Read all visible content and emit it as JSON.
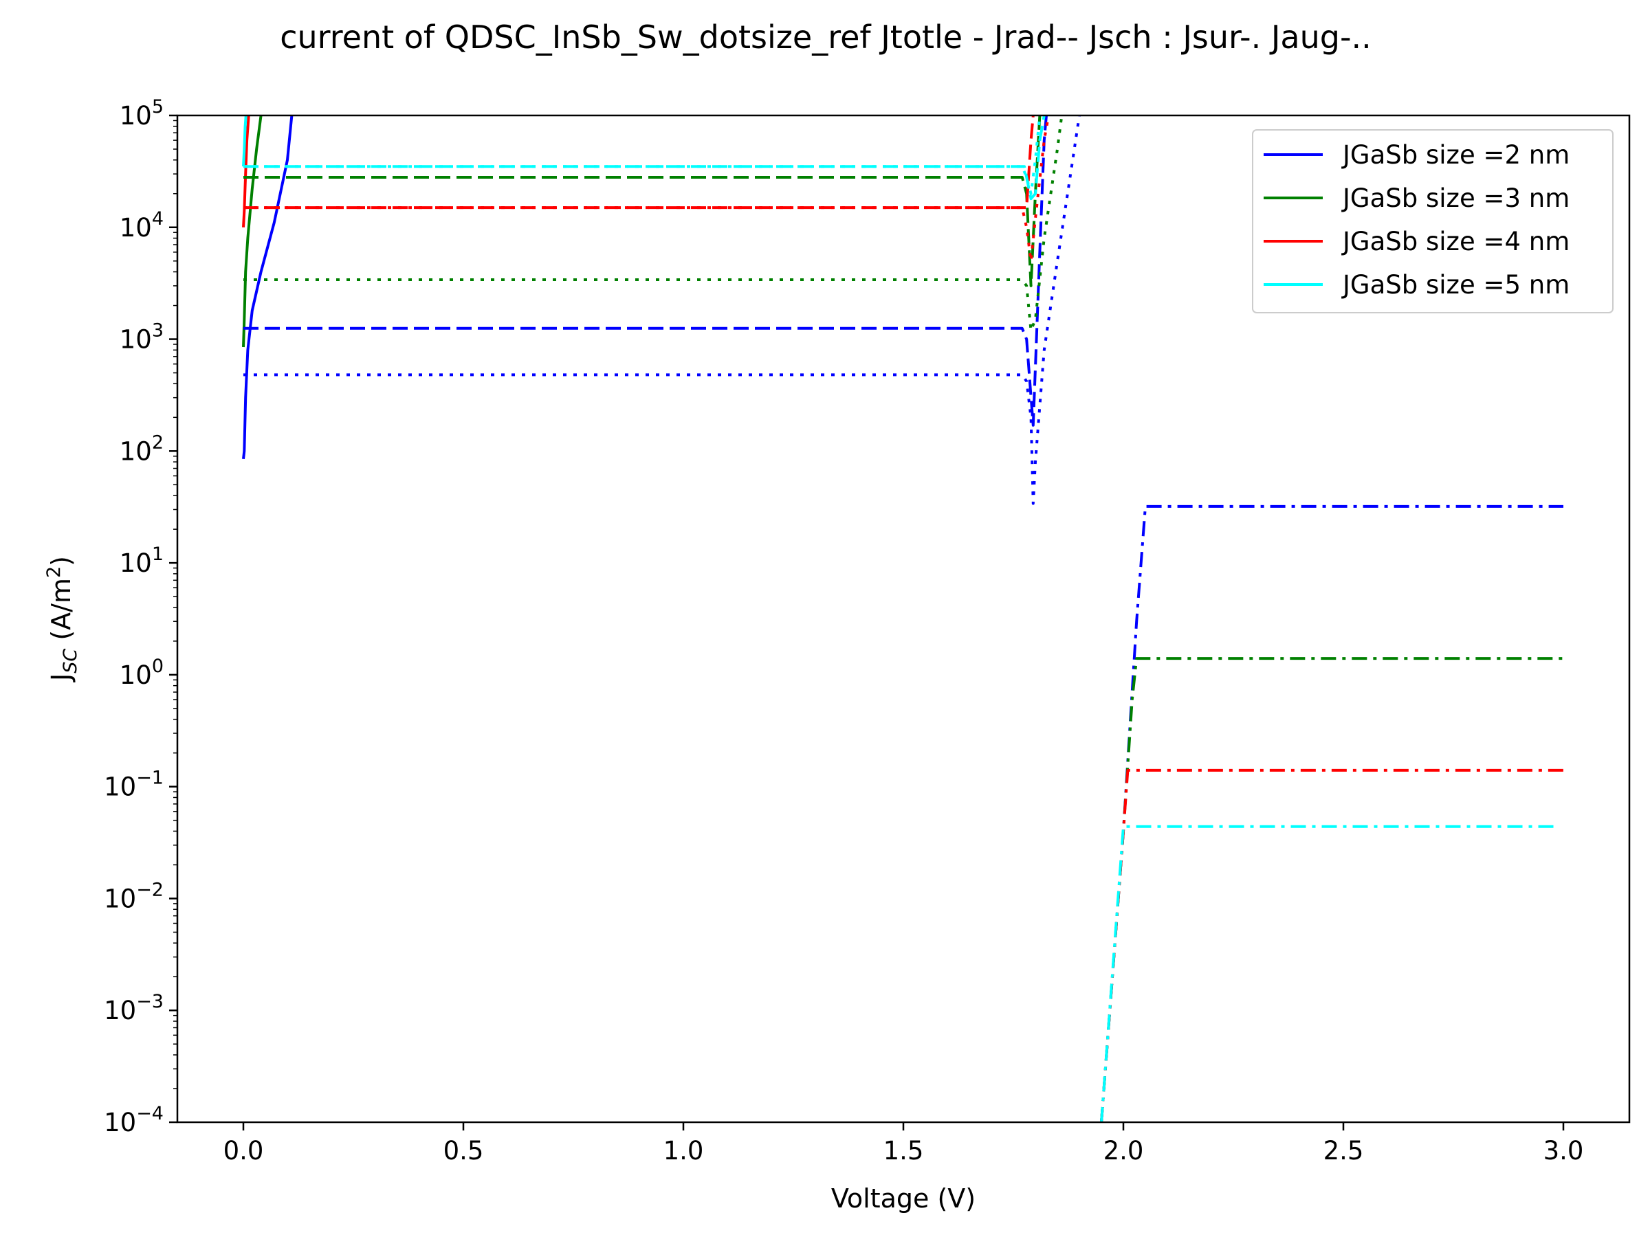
{
  "chart_data": {
    "type": "line",
    "title": "current of QDSC_InSb_Sw_dotsize_ref Jtotle - Jrad-- Jsch : Jsur-. Jaug-..",
    "xlabel": "Voltage (V)",
    "ylabel": {
      "main": "J",
      "sub": "SC",
      "unit_pre": " (A/m",
      "unit_sup": "2",
      "unit_post": ")"
    },
    "xscale": "linear",
    "yscale": "log",
    "xlim": [
      -0.15,
      3.15
    ],
    "ylim": [
      0.0001,
      100000
    ],
    "grid": false,
    "legend_position": "top-right",
    "x_ticks": [
      {
        "value": 0.0,
        "label": "0.0"
      },
      {
        "value": 0.5,
        "label": "0.5"
      },
      {
        "value": 1.0,
        "label": "1.0"
      },
      {
        "value": 1.5,
        "label": "1.5"
      },
      {
        "value": 2.0,
        "label": "2.0"
      },
      {
        "value": 2.5,
        "label": "2.5"
      },
      {
        "value": 3.0,
        "label": "3.0"
      }
    ],
    "y_ticks": [
      {
        "value": 100000,
        "base": "10",
        "exp": "5"
      },
      {
        "value": 10000,
        "base": "10",
        "exp": "4"
      },
      {
        "value": 1000,
        "base": "10",
        "exp": "3"
      },
      {
        "value": 100,
        "base": "10",
        "exp": "2"
      },
      {
        "value": 10,
        "base": "10",
        "exp": "1"
      },
      {
        "value": 1,
        "base": "10",
        "exp": "0"
      },
      {
        "value": 0.1,
        "base": "10",
        "exp": "−1"
      },
      {
        "value": 0.01,
        "base": "10",
        "exp": "−2"
      },
      {
        "value": 0.001,
        "base": "10",
        "exp": "−3"
      },
      {
        "value": 0.0001,
        "base": "10",
        "exp": "−4"
      }
    ],
    "legend": [
      {
        "label": "JGaSb size =2 nm",
        "color": "#0000ff"
      },
      {
        "label": "JGaSb size =3 nm",
        "color": "#008000"
      },
      {
        "label": "JGaSb size =4 nm",
        "color": "#ff0000"
      },
      {
        "label": "JGaSb size =5 nm",
        "color": "#00ffff"
      }
    ],
    "series": [
      {
        "group": "2 nm",
        "style": "solid",
        "color": "#0000ff",
        "points": [
          [
            0.0,
            85
          ],
          [
            0.002,
            100
          ],
          [
            0.005,
            300
          ],
          [
            0.01,
            800
          ],
          [
            0.02,
            1800
          ],
          [
            0.04,
            4000
          ],
          [
            0.07,
            11000
          ],
          [
            0.1,
            40000
          ],
          [
            0.11,
            100000
          ]
        ]
      },
      {
        "group": "3 nm",
        "style": "solid",
        "color": "#008000",
        "points": [
          [
            0.0,
            850
          ],
          [
            0.002,
            1500
          ],
          [
            0.005,
            4000
          ],
          [
            0.01,
            8000
          ],
          [
            0.02,
            22000
          ],
          [
            0.03,
            50000
          ],
          [
            0.04,
            100000
          ]
        ]
      },
      {
        "group": "4 nm",
        "style": "solid",
        "color": "#ff0000",
        "points": [
          [
            0.0,
            10000
          ],
          [
            0.002,
            14000
          ],
          [
            0.005,
            30000
          ],
          [
            0.008,
            60000
          ],
          [
            0.012,
            100000
          ]
        ]
      },
      {
        "group": "5 nm",
        "style": "solid",
        "color": "#00ffff",
        "points": [
          [
            0.0,
            35000
          ],
          [
            0.002,
            50000
          ],
          [
            0.004,
            80000
          ],
          [
            0.006,
            100000
          ]
        ]
      },
      {
        "group": "2 nm",
        "style": "dashed",
        "color": "#0000ff",
        "points": [
          [
            0.0,
            1250
          ],
          [
            1.77,
            1250
          ],
          [
            1.78,
            1000
          ],
          [
            1.795,
            170
          ],
          [
            1.81,
            6000
          ],
          [
            1.82,
            60000
          ],
          [
            1.825,
            100000
          ]
        ]
      },
      {
        "group": "3 nm",
        "style": "dashed",
        "color": "#008000",
        "points": [
          [
            0.0,
            28000
          ],
          [
            1.77,
            28000
          ],
          [
            1.78,
            20000
          ],
          [
            1.79,
            3000
          ],
          [
            1.8,
            20000
          ],
          [
            1.81,
            100000
          ]
        ]
      },
      {
        "group": "4 nm",
        "style": "dashed",
        "color": "#ff0000",
        "points": [
          [
            0.0,
            15000
          ],
          [
            1.78,
            15000
          ],
          [
            1.785,
            30000
          ],
          [
            1.79,
            60000
          ],
          [
            1.795,
            100000
          ]
        ]
      },
      {
        "group": "5 nm",
        "style": "dashed",
        "color": "#00ffff",
        "points": [
          [
            0.0,
            35000
          ],
          [
            1.775,
            35000
          ],
          [
            1.79,
            18000
          ],
          [
            1.8,
            20000
          ],
          [
            1.81,
            60000
          ],
          [
            1.82,
            100000
          ]
        ]
      },
      {
        "group": "2 nm",
        "style": "dotted",
        "color": "#0000ff",
        "points": [
          [
            0.0,
            480
          ],
          [
            1.77,
            480
          ],
          [
            1.78,
            420
          ],
          [
            1.79,
            200
          ],
          [
            1.795,
            34
          ],
          [
            1.8,
            80
          ],
          [
            1.82,
            800
          ],
          [
            1.85,
            5000
          ],
          [
            1.88,
            30000
          ],
          [
            1.9,
            100000
          ]
        ]
      },
      {
        "group": "3 nm",
        "style": "dotted",
        "color": "#008000",
        "points": [
          [
            0.0,
            3400
          ],
          [
            1.77,
            3400
          ],
          [
            1.78,
            3000
          ],
          [
            1.79,
            1200
          ],
          [
            1.8,
            1500
          ],
          [
            1.82,
            8000
          ],
          [
            1.85,
            50000
          ],
          [
            1.86,
            100000
          ]
        ]
      },
      {
        "group": "4 nm",
        "style": "dotted",
        "color": "#ff0000",
        "points": [
          [
            0.0,
            15000
          ],
          [
            1.77,
            15000
          ],
          [
            1.78,
            10000
          ],
          [
            1.79,
            5000
          ],
          [
            1.8,
            12000
          ],
          [
            1.82,
            60000
          ],
          [
            1.83,
            100000
          ]
        ]
      },
      {
        "group": "5 nm",
        "style": "dotted",
        "color": "#00ffff",
        "points": [
          [
            0.0,
            35000
          ],
          [
            1.77,
            35000
          ],
          [
            1.78,
            28000
          ],
          [
            1.79,
            20000
          ],
          [
            1.8,
            40000
          ],
          [
            1.81,
            100000
          ]
        ]
      },
      {
        "group": "2 nm",
        "style": "dashdot",
        "color": "#0000ff",
        "points": [
          [
            1.95,
            0.0001
          ],
          [
            2.0,
            0.04
          ],
          [
            2.03,
            3
          ],
          [
            2.05,
            32
          ],
          [
            3.0,
            32
          ]
        ]
      },
      {
        "group": "3 nm",
        "style": "dashdot",
        "color": "#008000",
        "points": [
          [
            1.95,
            0.0001
          ],
          [
            2.0,
            0.04
          ],
          [
            2.02,
            0.6
          ],
          [
            2.03,
            1.4
          ],
          [
            3.0,
            1.4
          ]
        ]
      },
      {
        "group": "4 nm",
        "style": "dashdot",
        "color": "#ff0000",
        "points": [
          [
            1.95,
            0.0001
          ],
          [
            2.0,
            0.04
          ],
          [
            2.01,
            0.14
          ],
          [
            3.0,
            0.14
          ]
        ]
      },
      {
        "group": "5 nm",
        "style": "dashdot",
        "color": "#00ffff",
        "points": [
          [
            1.95,
            0.0001
          ],
          [
            2.0,
            0.044
          ],
          [
            2.99,
            0.044
          ]
        ]
      }
    ]
  }
}
